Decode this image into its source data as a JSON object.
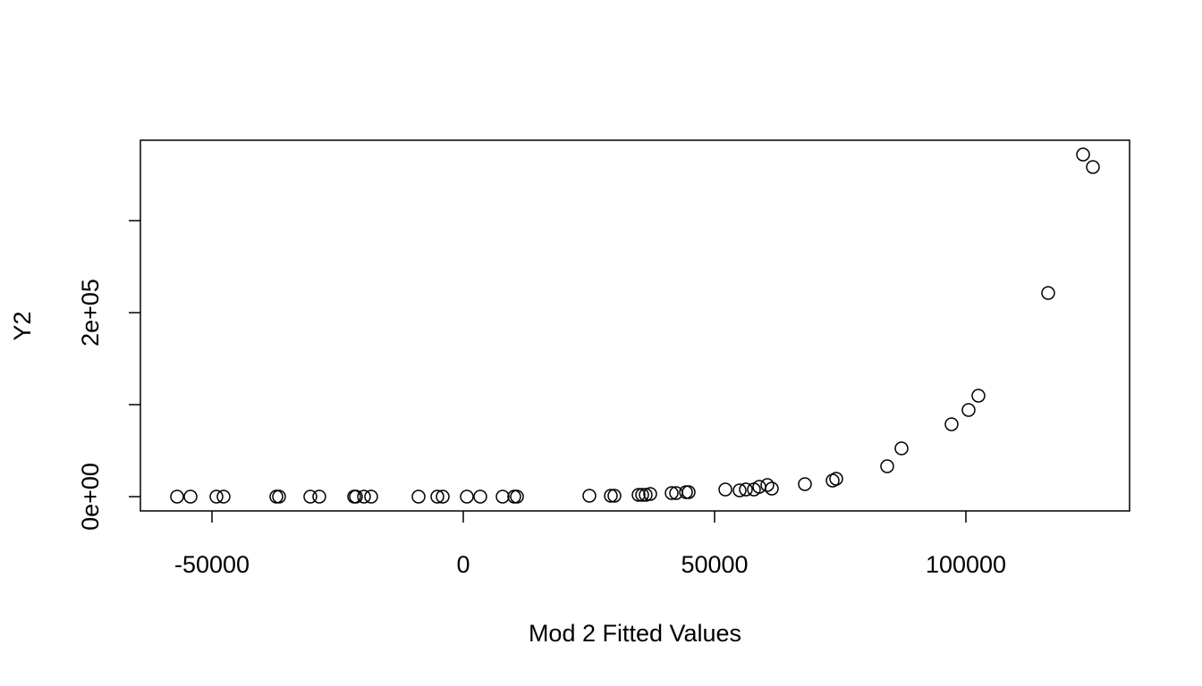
{
  "chart_data": {
    "type": "scatter",
    "x_label": "Mod 2 Fitted Values",
    "y_label": "Y2",
    "x": [
      -56940,
      -54270,
      -49110,
      -47690,
      -37190,
      -36650,
      -30430,
      -28650,
      -21710,
      -21350,
      -19750,
      -18330,
      -8900,
      -5160,
      -4090,
      710,
      3380,
      7830,
      10140,
      10680,
      25090,
      29360,
      30070,
      34880,
      35590,
      36300,
      37190,
      41460,
      42350,
      44310,
      44840,
      52140,
      54980,
      56230,
      57830,
      58900,
      60500,
      61390,
      67970,
      73490,
      74200,
      84340,
      87190,
      97150,
      100530,
      102490,
      116370,
      123310,
      125270
    ],
    "values": [
      0,
      0,
      0,
      0,
      0,
      0,
      0,
      0,
      0,
      0,
      0,
      0,
      0,
      0,
      0,
      0,
      0,
      0,
      0,
      0,
      970,
      970,
      970,
      1940,
      1940,
      1940,
      2910,
      3880,
      3880,
      4850,
      4850,
      7770,
      6800,
      7770,
      7770,
      10680,
      12620,
      8740,
      13590,
      17480,
      19420,
      33010,
      52430,
      78640,
      94170,
      109710,
      221360,
      371840,
      358250
    ],
    "color": "#000000",
    "xlim": [
      -64235,
      132562
    ],
    "ylim": [
      -15534,
      387379
    ],
    "xticks": [
      -50000,
      0,
      50000,
      100000
    ],
    "yticks": [
      {
        "value": 0,
        "label": "0e+00"
      },
      {
        "value": 100000,
        "label": null
      },
      {
        "value": 200000,
        "label": "2e+05"
      },
      {
        "value": 300000,
        "label": null
      }
    ]
  }
}
